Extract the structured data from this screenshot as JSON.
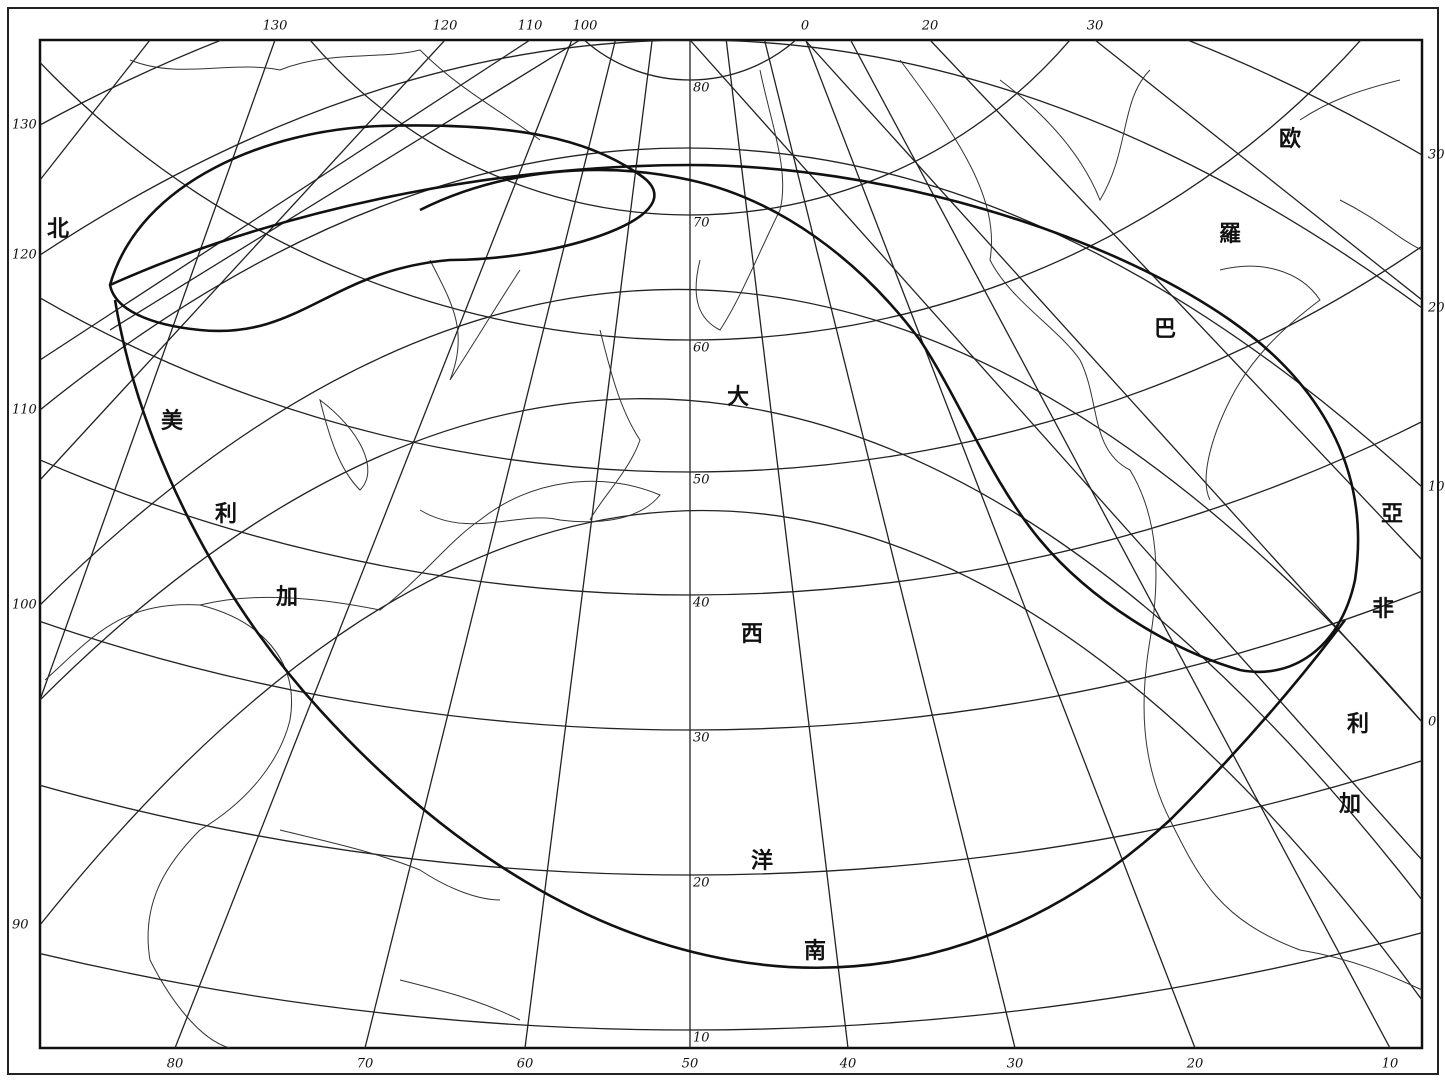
{
  "map": {
    "top_labels": [
      "130",
      "120",
      "110",
      "100",
      "0",
      "20",
      "30"
    ],
    "left_labels": [
      "130",
      "120",
      "110",
      "100",
      "90"
    ],
    "right_labels": [
      "30",
      "20",
      "10",
      "0"
    ],
    "bottom_labels": [
      "80",
      "70",
      "60",
      "50",
      "40",
      "30",
      "20",
      "10"
    ],
    "latitude_labels": [
      "80",
      "70",
      "60",
      "50",
      "40",
      "30",
      "20",
      "10"
    ],
    "place_names": [
      "北",
      "美",
      "利",
      "加",
      "大",
      "西",
      "洋",
      "南",
      "欧",
      "羅",
      "巴",
      "亞",
      "非",
      "利",
      "加"
    ]
  }
}
